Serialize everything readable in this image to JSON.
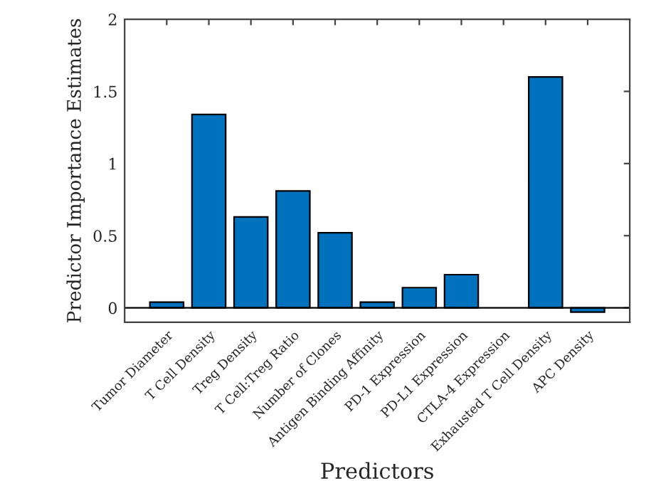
{
  "chart_data": {
    "type": "bar",
    "xlabel": "Predictors",
    "ylabel": "Predictor Importance Estimates",
    "categories": [
      "Tumor Diameter",
      "T Cell Density",
      "Treg Density",
      "T Cell:Treg Ratio",
      "Number of Clones",
      "Antigen Binding Affinity",
      "PD-1 Expression",
      "PD-L1 Expression",
      "CTLA-4 Expression",
      "Exhausted T Cell Density",
      "APC Density"
    ],
    "values": [
      0.04,
      1.34,
      0.63,
      0.81,
      0.52,
      0.04,
      0.14,
      0.23,
      0,
      1.6,
      -0.03
    ],
    "color": "#0072bd",
    "ylim": [
      -0.1,
      2
    ],
    "yticks": [
      0,
      0.5,
      1,
      1.5,
      2
    ],
    "ref_lines": [
      {
        "axis": "y",
        "value": 0,
        "color": "#000000"
      }
    ],
    "grid": false,
    "legend": false
  }
}
